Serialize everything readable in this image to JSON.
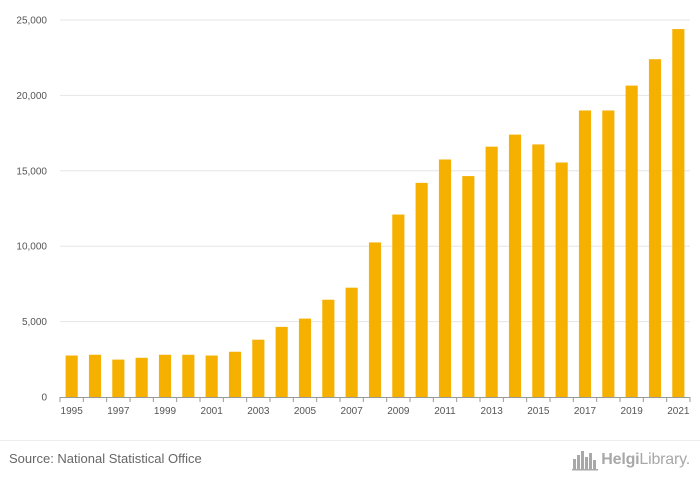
{
  "chart_data": {
    "type": "bar",
    "title": "",
    "xlabel": "",
    "ylabel": "",
    "ylim": [
      0,
      25000
    ],
    "yticks": [
      0,
      5000,
      10000,
      15000,
      20000,
      25000
    ],
    "ytick_labels": [
      "0",
      "5,000",
      "10,000",
      "15,000",
      "20,000",
      "25,000"
    ],
    "categories": [
      "1995",
      "1996",
      "1997",
      "1998",
      "1999",
      "2000",
      "2001",
      "2002",
      "2003",
      "2004",
      "2005",
      "2006",
      "2007",
      "2008",
      "2009",
      "2010",
      "2011",
      "2012",
      "2013",
      "2014",
      "2015",
      "2016",
      "2017",
      "2018",
      "2019",
      "2020",
      "2021"
    ],
    "x_tick_labels": [
      "1995",
      "1997",
      "1999",
      "2001",
      "2003",
      "2005",
      "2007",
      "2009",
      "2011",
      "2013",
      "2015",
      "2017",
      "2019",
      "2021"
    ],
    "values": [
      2750,
      2800,
      2480,
      2600,
      2800,
      2800,
      2750,
      3000,
      3800,
      4650,
      5200,
      6450,
      7250,
      10250,
      12100,
      14200,
      15750,
      14650,
      16600,
      17400,
      16750,
      15550,
      19000,
      19000,
      20650,
      22400,
      24400
    ],
    "bar_color": "#f5b000",
    "grid": true
  },
  "footer": {
    "source": "Source: National Statistical Office",
    "logo_text_bold": "Helgi",
    "logo_text_rest": "Library",
    "logo_icon": "city-skyline-icon",
    "logo_color": "#a8a8a8"
  }
}
